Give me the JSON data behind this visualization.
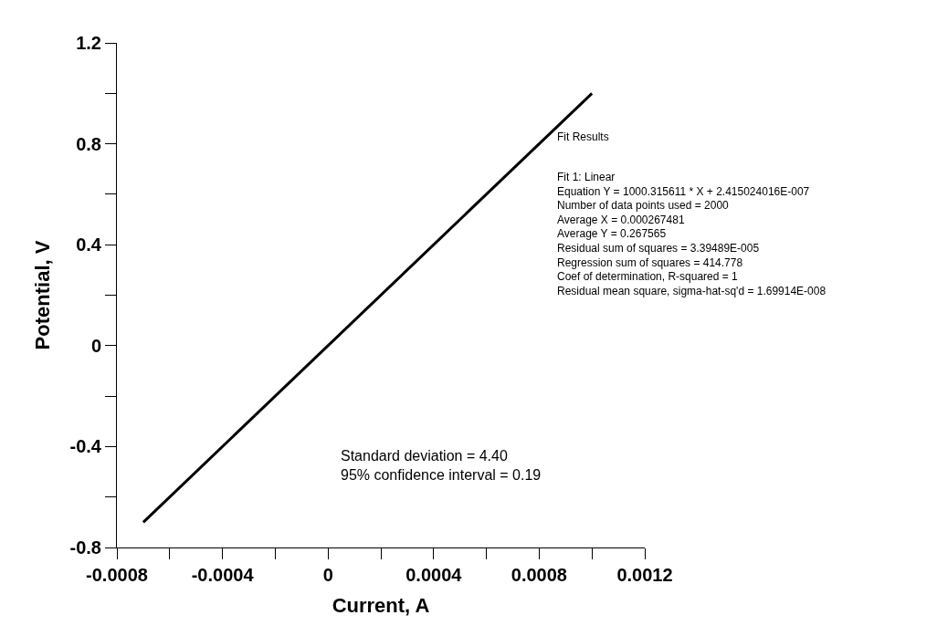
{
  "chart_data": {
    "type": "line",
    "xlabel": "Current, A",
    "ylabel": "Potential, V",
    "x": [
      -0.0007,
      0.001
    ],
    "series": [
      {
        "color": "#000000",
        "values": [
          -0.7,
          1.0
        ]
      }
    ],
    "xlim": [
      -0.0008,
      0.0012
    ],
    "xticks": [
      {
        "value": -0.0008,
        "label": "-0.0008"
      },
      {
        "value": -0.0006,
        "label": null
      },
      {
        "value": -0.0004,
        "label": "-0.0004"
      },
      {
        "value": -0.0002,
        "label": null
      },
      0,
      {
        "value": 0.0002,
        "label": null
      },
      {
        "value": 0.0004,
        "label": "0.0004"
      },
      {
        "value": 0.0006,
        "label": null
      },
      {
        "value": 0.0008,
        "label": "0.0008"
      },
      {
        "value": 0.001,
        "label": null
      },
      {
        "value": 0.0012,
        "label": "0.0012"
      }
    ],
    "ylim": [
      -0.8,
      1.2
    ],
    "yticks": [
      -0.8,
      {
        "value": -0.6,
        "label": null
      },
      -0.4,
      {
        "value": -0.2,
        "label": null
      },
      0,
      {
        "value": 0.2,
        "label": null
      },
      0.4,
      {
        "value": 0.6,
        "label": null
      },
      0.8,
      {
        "value": 1.0,
        "label": null
      },
      1.2
    ],
    "marker": "none",
    "line_style": "solid",
    "annotations": [
      "Fit Results",
      "Fit 1: Linear\nEquation Y = 1000.315611 * X + 2.415024016E-007\nNumber of data points used = 2000\nAverage X = 0.000267481\nAverage Y = 0.267565\nResidual sum of squares = 3.39489E-005\nRegression sum of squares = 414.778\nCoef of determination, R-squared = 1\nResidual mean square, sigma-hat-sq'd = 1.69914E-008",
      "Standard deviation = 4.40\n95% confidence interval = 0.19"
    ]
  }
}
